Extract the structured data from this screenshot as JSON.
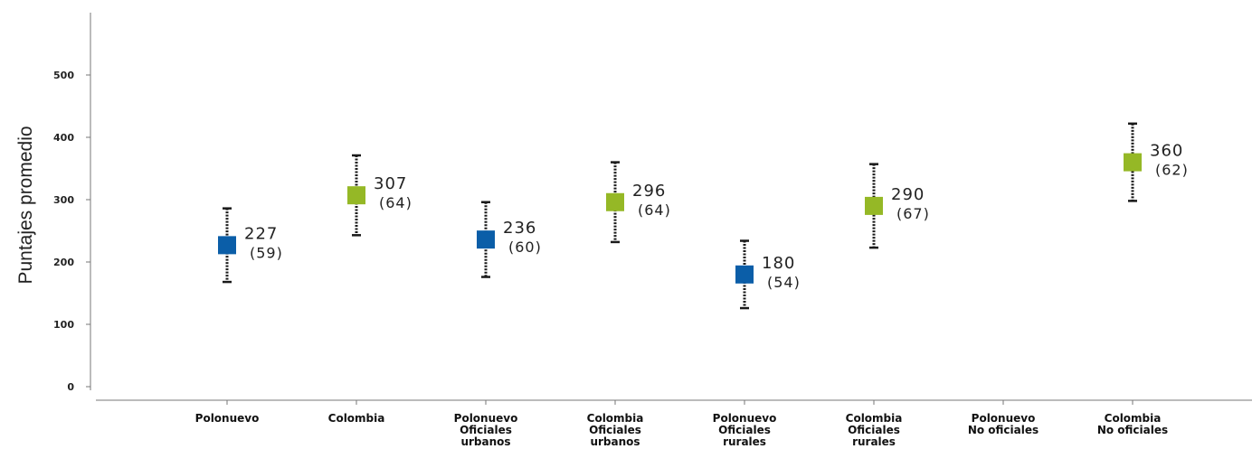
{
  "chart_data": {
    "type": "scatter",
    "title": "",
    "xlabel": "",
    "ylabel": "Puntajes promedio",
    "ylim": [
      0,
      500
    ],
    "yticks": [
      0,
      100,
      200,
      300,
      400,
      500
    ],
    "grid": false,
    "categories": [
      [
        "Polonuevo"
      ],
      [
        "Colombia"
      ],
      [
        "Polonuevo",
        "Oficiales",
        "urbanos"
      ],
      [
        "Colombia",
        "Oficiales",
        "urbanos"
      ],
      [
        "Polonuevo",
        "Oficiales",
        "rurales"
      ],
      [
        "Colombia",
        "Oficiales",
        "rurales"
      ],
      [
        "Polonuevo",
        "No oficiales"
      ],
      [
        "Colombia",
        "No oficiales"
      ]
    ],
    "points": [
      {
        "category_index": 0,
        "mean": 227,
        "sd": 59,
        "mean_label": "227",
        "sd_label": "(59)",
        "color": "#0b5ea8"
      },
      {
        "category_index": 1,
        "mean": 307,
        "sd": 64,
        "mean_label": "307",
        "sd_label": "(64)",
        "color": "#95b826"
      },
      {
        "category_index": 2,
        "mean": 236,
        "sd": 60,
        "mean_label": "236",
        "sd_label": "(60)",
        "color": "#0b5ea8"
      },
      {
        "category_index": 3,
        "mean": 296,
        "sd": 64,
        "mean_label": "296",
        "sd_label": "(64)",
        "color": "#95b826"
      },
      {
        "category_index": 4,
        "mean": 180,
        "sd": 54,
        "mean_label": "180",
        "sd_label": "(54)",
        "color": "#0b5ea8"
      },
      {
        "category_index": 5,
        "mean": 290,
        "sd": 67,
        "mean_label": "290",
        "sd_label": "(67)",
        "color": "#95b826"
      },
      {
        "category_index": 7,
        "mean": 360,
        "sd": 62,
        "mean_label": "360",
        "sd_label": "(62)",
        "color": "#95b826"
      }
    ]
  }
}
